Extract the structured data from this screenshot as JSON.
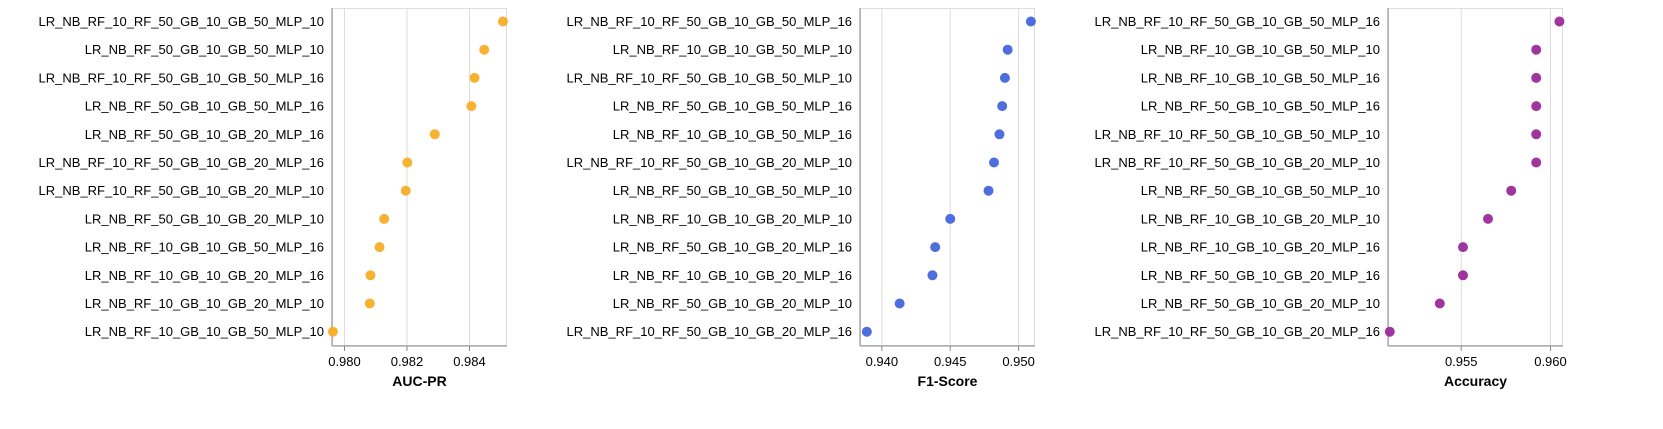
{
  "chart_data": [
    {
      "type": "scatter",
      "xlabel": "AUC-PR",
      "color": "#f8ae26",
      "xlim": [
        0.9796,
        0.9852
      ],
      "xticks": [
        "0.980",
        "0.982",
        "0.984"
      ],
      "grid": true,
      "categories": [
        "LR_NB_RF_10_RF_50_GB_10_GB_50_MLP_10",
        "LR_NB_RF_50_GB_10_GB_50_MLP_10",
        "LR_NB_RF_10_RF_50_GB_10_GB_50_MLP_16",
        "LR_NB_RF_50_GB_10_GB_50_MLP_16",
        "LR_NB_RF_50_GB_10_GB_20_MLP_16",
        "LR_NB_RF_10_RF_50_GB_10_GB_20_MLP_16",
        "LR_NB_RF_10_RF_50_GB_10_GB_20_MLP_10",
        "LR_NB_RF_50_GB_10_GB_20_MLP_10",
        "LR_NB_RF_10_GB_10_GB_50_MLP_16",
        "LR_NB_RF_10_GB_10_GB_20_MLP_16",
        "LR_NB_RF_10_GB_10_GB_20_MLP_10",
        "LR_NB_RF_10_GB_10_GB_50_MLP_10"
      ],
      "values": [
        0.98507,
        0.98447,
        0.98416,
        0.98406,
        0.98289,
        0.98201,
        0.98196,
        0.98127,
        0.98112,
        0.98083,
        0.98081,
        0.97963
      ]
    },
    {
      "type": "scatter",
      "xlabel": "F1-Score",
      "color": "#4466dd",
      "xlim": [
        0.9384,
        0.9512
      ],
      "xticks": [
        "0.940",
        "0.945",
        "0.950"
      ],
      "grid": true,
      "categories": [
        "LR_NB_RF_10_RF_50_GB_10_GB_50_MLP_16",
        "LR_NB_RF_10_GB_10_GB_50_MLP_10",
        "LR_NB_RF_10_RF_50_GB_10_GB_50_MLP_10",
        "LR_NB_RF_50_GB_10_GB_50_MLP_16",
        "LR_NB_RF_10_GB_10_GB_50_MLP_16",
        "LR_NB_RF_10_RF_50_GB_10_GB_20_MLP_10",
        "LR_NB_RF_50_GB_10_GB_50_MLP_10",
        "LR_NB_RF_10_GB_10_GB_20_MLP_10",
        "LR_NB_RF_50_GB_10_GB_20_MLP_16",
        "LR_NB_RF_10_GB_10_GB_20_MLP_16",
        "LR_NB_RF_50_GB_10_GB_20_MLP_10",
        "LR_NB_RF_10_RF_50_GB_10_GB_20_MLP_16"
      ],
      "values": [
        0.9509,
        0.9492,
        0.949,
        0.9488,
        0.9486,
        0.9482,
        0.9478,
        0.945,
        0.9439,
        0.9437,
        0.9413,
        0.9389
      ]
    },
    {
      "type": "scatter",
      "xlabel": "Accuracy",
      "color": "#9b2a9b",
      "xlim": [
        0.9509,
        0.9607
      ],
      "xticks": [
        "0.955",
        "0.960"
      ],
      "grid": true,
      "categories": [
        "LR_NB_RF_10_RF_50_GB_10_GB_50_MLP_16",
        "LR_NB_RF_10_GB_10_GB_50_MLP_10",
        "LR_NB_RF_10_GB_10_GB_50_MLP_16",
        "LR_NB_RF_50_GB_10_GB_50_MLP_16",
        "LR_NB_RF_10_RF_50_GB_10_GB_50_MLP_10",
        "LR_NB_RF_10_RF_50_GB_10_GB_20_MLP_10",
        "LR_NB_RF_50_GB_10_GB_50_MLP_10",
        "LR_NB_RF_10_GB_10_GB_20_MLP_10",
        "LR_NB_RF_10_GB_10_GB_20_MLP_16",
        "LR_NB_RF_50_GB_10_GB_20_MLP_16",
        "LR_NB_RF_50_GB_10_GB_20_MLP_10",
        "LR_NB_RF_10_RF_50_GB_10_GB_20_MLP_16"
      ],
      "values": [
        0.9605,
        0.9592,
        0.9592,
        0.9592,
        0.9592,
        0.9592,
        0.9578,
        0.9565,
        0.9551,
        0.9551,
        0.9538,
        0.951
      ]
    }
  ]
}
